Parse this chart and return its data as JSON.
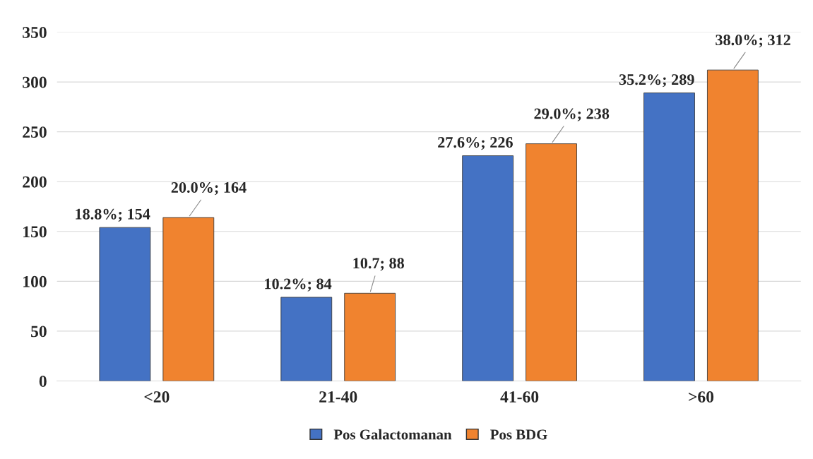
{
  "chart_data": {
    "type": "bar",
    "categories": [
      "<20",
      "21-40",
      "41-60",
      ">60"
    ],
    "series": [
      {
        "name": "Pos Galactomanan",
        "color": "#4472c4",
        "values": [
          154,
          84,
          226,
          289
        ],
        "value_labels": [
          "18.8%; 154",
          "10.2%; 84",
          "27.6%; 226",
          "35.2%; 289"
        ]
      },
      {
        "name": "Pos BDG",
        "color": "#f0832f",
        "values": [
          164,
          88,
          238,
          312
        ],
        "value_labels": [
          "20.0%; 164",
          "10.7; 88",
          "29.0%; 238",
          "38.0%; 312"
        ]
      }
    ],
    "ylim": [
      0,
      350
    ],
    "yticks": [
      0,
      50,
      100,
      150,
      200,
      250,
      300,
      350
    ],
    "grid": "y",
    "legend": "bottom"
  }
}
